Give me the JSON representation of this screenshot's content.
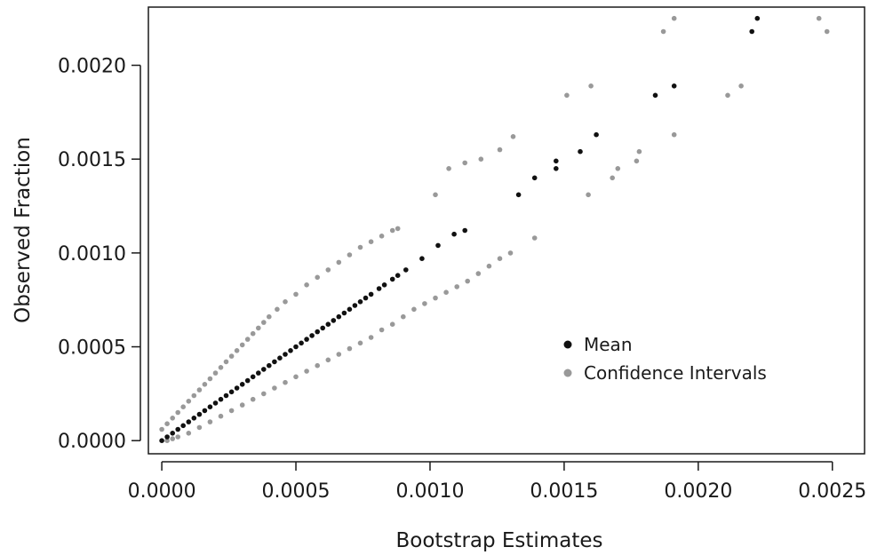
{
  "chart_data": {
    "type": "scatter",
    "title": "",
    "xlabel": "Bootstrap Estimates",
    "ylabel": "Observed Fraction",
    "xlim": [
      -5e-05,
      0.00262
    ],
    "ylim": [
      -7e-05,
      0.00231
    ],
    "x_ticks": [
      0.0,
      0.0005,
      0.001,
      0.0015,
      0.002,
      0.0025
    ],
    "x_tick_labels": [
      "0.0000",
      "0.0005",
      "0.0010",
      "0.0015",
      "0.0020",
      "0.0025"
    ],
    "y_ticks": [
      0.0,
      0.0005,
      0.001,
      0.0015,
      0.002
    ],
    "y_tick_labels": [
      "0.0000",
      "0.0005",
      "0.0010",
      "0.0015",
      "0.0020"
    ],
    "grid": false,
    "legend_position": "right",
    "series": [
      {
        "name": "Mean",
        "color": "#111111",
        "points": [
          [
            0.0,
            0.0
          ],
          [
            2e-05,
            2e-05
          ],
          [
            4e-05,
            4e-05
          ],
          [
            6e-05,
            6e-05
          ],
          [
            8e-05,
            8e-05
          ],
          [
            0.0001,
            0.0001
          ],
          [
            0.00012,
            0.00012
          ],
          [
            0.00014,
            0.00014
          ],
          [
            0.00016,
            0.00016
          ],
          [
            0.00018,
            0.00018
          ],
          [
            0.0002,
            0.0002
          ],
          [
            0.00022,
            0.00022
          ],
          [
            0.00024,
            0.00024
          ],
          [
            0.00026,
            0.00026
          ],
          [
            0.00028,
            0.00028
          ],
          [
            0.0003,
            0.0003
          ],
          [
            0.00032,
            0.00032
          ],
          [
            0.00034,
            0.00034
          ],
          [
            0.00036,
            0.00036
          ],
          [
            0.00038,
            0.00038
          ],
          [
            0.0004,
            0.0004
          ],
          [
            0.00042,
            0.00042
          ],
          [
            0.00044,
            0.00044
          ],
          [
            0.00046,
            0.00046
          ],
          [
            0.00048,
            0.00048
          ],
          [
            0.0005,
            0.0005
          ],
          [
            0.00052,
            0.00052
          ],
          [
            0.00054,
            0.00054
          ],
          [
            0.00056,
            0.00056
          ],
          [
            0.00058,
            0.00058
          ],
          [
            0.0006,
            0.0006
          ],
          [
            0.00062,
            0.00062
          ],
          [
            0.00064,
            0.00064
          ],
          [
            0.00066,
            0.00066
          ],
          [
            0.00068,
            0.00068
          ],
          [
            0.0007,
            0.0007
          ],
          [
            0.00072,
            0.00072
          ],
          [
            0.00074,
            0.00074
          ],
          [
            0.00076,
            0.00076
          ],
          [
            0.00078,
            0.00078
          ],
          [
            0.00081,
            0.00081
          ],
          [
            0.00083,
            0.00083
          ],
          [
            0.00086,
            0.00086
          ],
          [
            0.00088,
            0.00088
          ],
          [
            0.00091,
            0.00091
          ],
          [
            0.00097,
            0.00097
          ],
          [
            0.00103,
            0.00104
          ],
          [
            0.00109,
            0.0011
          ],
          [
            0.00113,
            0.00112
          ],
          [
            0.00133,
            0.00131
          ],
          [
            0.00139,
            0.0014
          ],
          [
            0.00147,
            0.00145
          ],
          [
            0.00147,
            0.00149
          ],
          [
            0.00156,
            0.00154
          ],
          [
            0.00162,
            0.00163
          ],
          [
            0.00184,
            0.00184
          ],
          [
            0.00191,
            0.00189
          ],
          [
            0.0022,
            0.00218
          ],
          [
            0.00222,
            0.00225
          ]
        ]
      },
      {
        "name": "Confidence Intervals",
        "color": "#999999",
        "points": [
          [
            0.0,
            6e-05
          ],
          [
            2e-05,
            9e-05
          ],
          [
            4e-05,
            0.00012
          ],
          [
            6e-05,
            0.00015
          ],
          [
            8e-05,
            0.00018
          ],
          [
            0.0001,
            0.00021
          ],
          [
            0.00012,
            0.00024
          ],
          [
            0.00014,
            0.00027
          ],
          [
            0.00016,
            0.0003
          ],
          [
            0.00018,
            0.00033
          ],
          [
            0.0002,
            0.00036
          ],
          [
            0.00022,
            0.00039
          ],
          [
            0.00024,
            0.00042
          ],
          [
            0.00026,
            0.00045
          ],
          [
            0.00028,
            0.00048
          ],
          [
            0.0003,
            0.00051
          ],
          [
            0.00032,
            0.00054
          ],
          [
            0.00034,
            0.00057
          ],
          [
            0.00036,
            0.0006
          ],
          [
            0.00038,
            0.00063
          ],
          [
            0.0004,
            0.00066
          ],
          [
            0.00043,
            0.0007
          ],
          [
            0.00046,
            0.00074
          ],
          [
            0.0005,
            0.00078
          ],
          [
            0.00054,
            0.00083
          ],
          [
            0.00058,
            0.00087
          ],
          [
            0.00062,
            0.00091
          ],
          [
            0.00066,
            0.00095
          ],
          [
            0.0007,
            0.00099
          ],
          [
            0.00074,
            0.00103
          ],
          [
            0.00078,
            0.00106
          ],
          [
            0.00082,
            0.00109
          ],
          [
            0.00086,
            0.00112
          ],
          [
            0.00088,
            0.00113
          ],
          [
            2e-05,
            0.0
          ],
          [
            4e-05,
            1e-05
          ],
          [
            6e-05,
            2e-05
          ],
          [
            0.0001,
            4e-05
          ],
          [
            0.00014,
            7e-05
          ],
          [
            0.00018,
            0.0001
          ],
          [
            0.00022,
            0.00013
          ],
          [
            0.00026,
            0.00016
          ],
          [
            0.0003,
            0.00019
          ],
          [
            0.00034,
            0.00022
          ],
          [
            0.00038,
            0.00025
          ],
          [
            0.00042,
            0.00028
          ],
          [
            0.00046,
            0.00031
          ],
          [
            0.0005,
            0.00034
          ],
          [
            0.00054,
            0.00037
          ],
          [
            0.00058,
            0.0004
          ],
          [
            0.00062,
            0.00043
          ],
          [
            0.00066,
            0.00046
          ],
          [
            0.0007,
            0.00049
          ],
          [
            0.00074,
            0.00052
          ],
          [
            0.00078,
            0.00055
          ],
          [
            0.00082,
            0.00059
          ],
          [
            0.00086,
            0.00062
          ],
          [
            0.0009,
            0.00066
          ],
          [
            0.00094,
            0.0007
          ],
          [
            0.00098,
            0.00073
          ],
          [
            0.00102,
            0.00076
          ],
          [
            0.00106,
            0.00079
          ],
          [
            0.0011,
            0.00082
          ],
          [
            0.00114,
            0.00085
          ],
          [
            0.00118,
            0.00089
          ],
          [
            0.00122,
            0.00093
          ],
          [
            0.00126,
            0.00097
          ],
          [
            0.0013,
            0.001
          ],
          [
            0.00139,
            0.00108
          ],
          [
            0.00102,
            0.00131
          ],
          [
            0.00107,
            0.00145
          ],
          [
            0.00113,
            0.00148
          ],
          [
            0.00119,
            0.0015
          ],
          [
            0.00126,
            0.00155
          ],
          [
            0.00131,
            0.00162
          ],
          [
            0.00151,
            0.00184
          ],
          [
            0.0016,
            0.00189
          ],
          [
            0.00187,
            0.00218
          ],
          [
            0.00191,
            0.00225
          ],
          [
            0.00159,
            0.00131
          ],
          [
            0.00168,
            0.0014
          ],
          [
            0.0017,
            0.00145
          ],
          [
            0.00177,
            0.00149
          ],
          [
            0.00178,
            0.00154
          ],
          [
            0.00191,
            0.00163
          ],
          [
            0.00211,
            0.00184
          ],
          [
            0.00216,
            0.00189
          ],
          [
            0.00245,
            0.00225
          ],
          [
            0.00248,
            0.00218
          ]
        ]
      }
    ]
  }
}
